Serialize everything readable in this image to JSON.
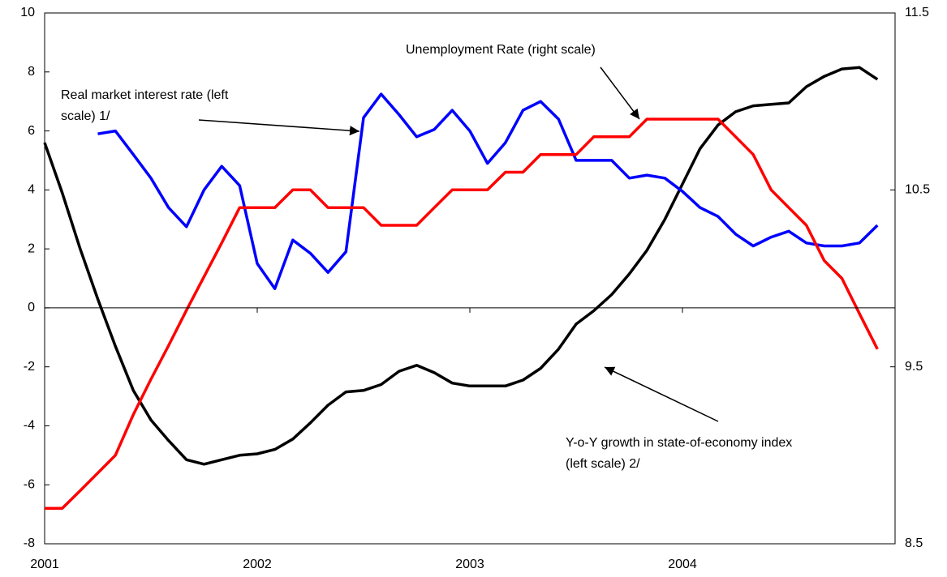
{
  "chart_data": {
    "type": "line",
    "x": [
      2001,
      2001.083,
      2001.167,
      2001.25,
      2001.333,
      2001.417,
      2001.5,
      2001.583,
      2001.667,
      2001.75,
      2001.833,
      2001.917,
      2002,
      2002.083,
      2002.167,
      2002.25,
      2002.333,
      2002.417,
      2002.5,
      2002.583,
      2002.667,
      2002.75,
      2002.833,
      2002.917,
      2003,
      2003.083,
      2003.167,
      2003.25,
      2003.333,
      2003.417,
      2003.5,
      2003.583,
      2003.667,
      2003.75,
      2003.833,
      2003.917,
      2004,
      2004.083,
      2004.167,
      2004.25,
      2004.333,
      2004.417,
      2004.5,
      2004.583,
      2004.667,
      2004.75,
      2004.833,
      2004.917
    ],
    "xlim": [
      2001,
      2005
    ],
    "xticks": [
      2001,
      2002,
      2003,
      2004
    ],
    "ylim": [
      -8,
      10
    ],
    "yticks": [
      -8,
      -6,
      -4,
      -2,
      0,
      2,
      4,
      6,
      8,
      10
    ],
    "y2lim": [
      8.5,
      11.5
    ],
    "y2ticks": [
      8.5,
      9.5,
      10.5,
      11.5
    ],
    "series": [
      {
        "name": "Y-o-Y growth in state-of-economy index",
        "color": "#000000",
        "axis": "y",
        "values": [
          5.6,
          3.9,
          2.0,
          0.3,
          -1.3,
          -2.8,
          -3.8,
          -4.5,
          -5.15,
          -5.3,
          -5.15,
          -5.0,
          -4.95,
          -4.8,
          -4.45,
          -3.9,
          -3.3,
          -2.85,
          -2.8,
          -2.6,
          -2.15,
          -1.95,
          -2.2,
          -2.55,
          -2.65,
          -2.65,
          -2.65,
          -2.45,
          -2.05,
          -1.4,
          -0.55,
          -0.1,
          0.45,
          1.15,
          1.95,
          3.0,
          4.2,
          5.4,
          6.2,
          6.65,
          6.85,
          6.9,
          6.95,
          7.5,
          7.85,
          8.1,
          8.15,
          7.75
        ]
      },
      {
        "name": "Real market interest rate",
        "color": "#0000ff",
        "axis": "y",
        "values": [
          null,
          null,
          null,
          5.9,
          6.0,
          5.2,
          4.4,
          3.4,
          2.75,
          4.0,
          4.8,
          4.15,
          1.5,
          0.65,
          2.3,
          1.85,
          1.2,
          1.9,
          6.45,
          7.25,
          6.55,
          5.8,
          6.05,
          6.7,
          6.0,
          4.9,
          5.6,
          6.7,
          7.0,
          6.4,
          5.0,
          5.0,
          5.0,
          4.4,
          4.5,
          4.4,
          3.95,
          3.4,
          3.1,
          2.5,
          2.1,
          2.4,
          2.6,
          2.2,
          2.1,
          2.1,
          2.2,
          2.8
        ]
      },
      {
        "name": "Unemployment Rate",
        "color": "#ff0000",
        "axis": "y2",
        "values": [
          8.7,
          8.7,
          8.8,
          8.9,
          9.0,
          9.23,
          9.43,
          9.62,
          9.82,
          10.01,
          10.2,
          10.4,
          10.4,
          10.4,
          10.5,
          10.5,
          10.4,
          10.4,
          10.4,
          10.3,
          10.3,
          10.3,
          10.4,
          10.5,
          10.5,
          10.5,
          10.6,
          10.6,
          10.7,
          10.7,
          10.7,
          10.8,
          10.8,
          10.8,
          10.9,
          10.9,
          10.9,
          10.9,
          10.9,
          10.8,
          10.7,
          10.5,
          10.4,
          10.3,
          10.1,
          10.0,
          9.8,
          9.6
        ]
      }
    ],
    "annotations": [
      {
        "lines": [
          "Unemployment Rate (right scale)"
        ]
      },
      {
        "lines": [
          "Real market interest rate (left",
          "scale) 1/"
        ]
      },
      {
        "lines": [
          "Y-o-Y growth in state-of-economy index",
          "(left scale) 2/"
        ]
      }
    ]
  }
}
